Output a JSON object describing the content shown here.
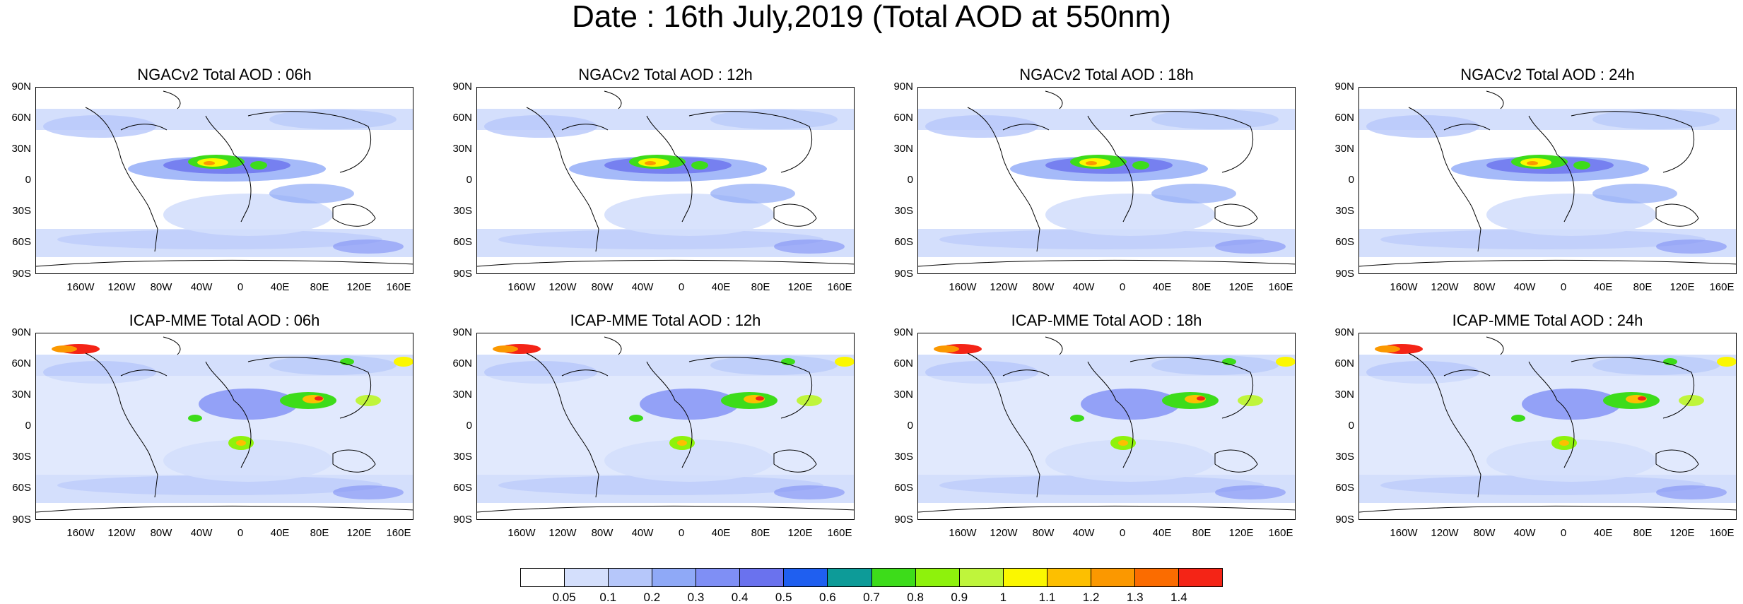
{
  "title": "Date : 16th July,2019 (Total AOD at 550nm)",
  "panels": [
    {
      "title": "NGACv2 Total AOD : 06h"
    },
    {
      "title": "NGACv2 Total AOD : 12h"
    },
    {
      "title": "NGACv2 Total AOD : 18h"
    },
    {
      "title": "NGACv2 Total AOD : 24h"
    },
    {
      "title": "ICAP-MME Total AOD : 06h"
    },
    {
      "title": "ICAP-MME Total AOD : 12h"
    },
    {
      "title": "ICAP-MME Total AOD : 18h"
    },
    {
      "title": "ICAP-MME Total AOD : 24h"
    }
  ],
  "lat_ticks": [
    "90N",
    "60N",
    "30N",
    "0",
    "30S",
    "60S",
    "90S"
  ],
  "lon_ticks": [
    "160W",
    "120W",
    "80W",
    "40W",
    "0",
    "40E",
    "80E",
    "120E",
    "160E"
  ],
  "colorbar": {
    "labels": [
      "0.05",
      "0.1",
      "0.2",
      "0.3",
      "0.4",
      "0.5",
      "0.6",
      "0.7",
      "0.8",
      "0.9",
      "1",
      "1.1",
      "1.2",
      "1.3",
      "1.4"
    ],
    "colors": [
      "#ffffff",
      "#d4dffc",
      "#b6c7fa",
      "#8fa9f7",
      "#7f8ff5",
      "#6a72ee",
      "#1f5ff0",
      "#0d9b98",
      "#3ddc1a",
      "#8ef20c",
      "#bff53b",
      "#fbf700",
      "#fdbf00",
      "#fb9800",
      "#fb6c00",
      "#f42416"
    ]
  }
}
